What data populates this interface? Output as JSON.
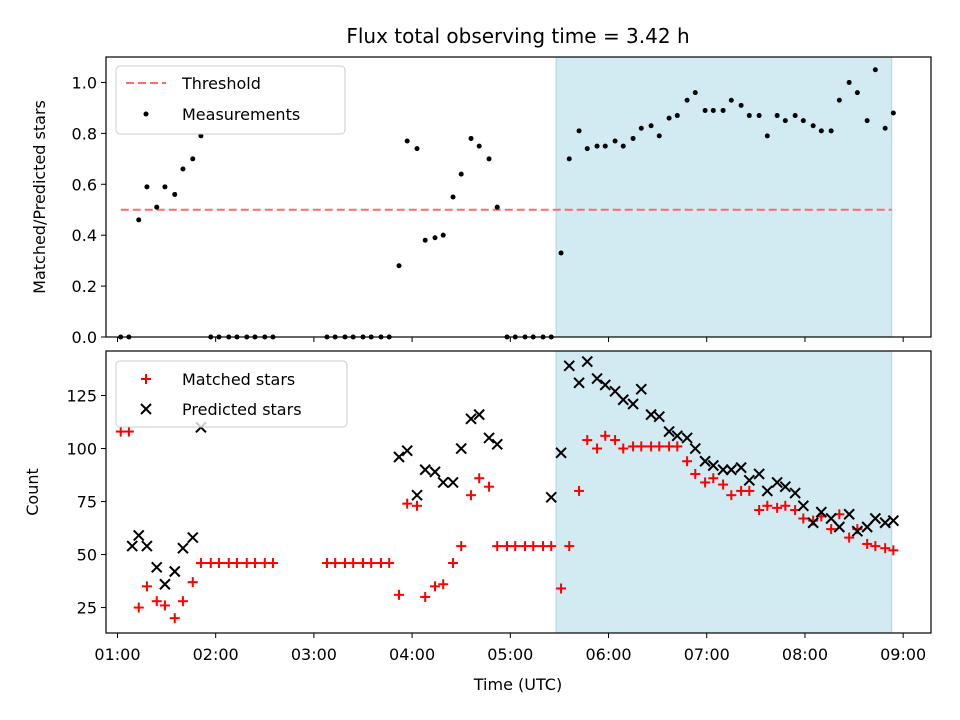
{
  "chart_data": [
    {
      "type": "scatter",
      "title": "Flux total observing time = 3.42 h",
      "ylabel": "Matched/Predicted stars",
      "xlabel": "",
      "xlim": [
        "00:53",
        "09:17"
      ],
      "ylim": [
        0,
        1.1
      ],
      "yticks": [
        "0.0",
        "0.2",
        "0.4",
        "0.6",
        "0.8",
        "1.0"
      ],
      "yticks_values": [
        0,
        0.2,
        0.4,
        0.6,
        0.8,
        1.0
      ],
      "legend_position": "upper left",
      "legend": [
        "Threshold",
        "Measurements"
      ],
      "shaded_region": {
        "start": "05:28",
        "end": "08:53",
        "color": "#add8e6"
      },
      "threshold": {
        "name": "Threshold",
        "value": 0.5,
        "start": "01:02",
        "end": "08:53",
        "color": "#ff6b6b",
        "style": "dashed"
      },
      "series": [
        {
          "name": "Measurements",
          "marker": "dot",
          "color": "#000000",
          "x": [
            "01:02",
            "01:07",
            "01:13",
            "01:18",
            "01:24",
            "01:29",
            "01:35",
            "01:40",
            "01:46",
            "01:51",
            "01:57",
            "02:02",
            "02:08",
            "02:13",
            "02:19",
            "02:24",
            "02:30",
            "02:35",
            "03:08",
            "03:13",
            "03:19",
            "03:24",
            "03:30",
            "03:35",
            "03:41",
            "03:46",
            "03:52",
            "03:57",
            "04:03",
            "04:08",
            "04:14",
            "04:19",
            "04:25",
            "04:30",
            "04:36",
            "04:41",
            "04:47",
            "04:52",
            "04:58",
            "05:03",
            "05:09",
            "05:14",
            "05:20",
            "05:25",
            "05:31",
            "05:36",
            "05:42",
            "05:47",
            "05:53",
            "05:58",
            "06:04",
            "06:09",
            "06:15",
            "06:20",
            "06:26",
            "06:31",
            "06:37",
            "06:42",
            "06:48",
            "06:53",
            "06:59",
            "07:04",
            "07:10",
            "07:15",
            "07:21",
            "07:26",
            "07:32",
            "07:37",
            "07:43",
            "07:48",
            "07:54",
            "07:59",
            "08:05",
            "08:10",
            "08:16",
            "08:21",
            "08:27",
            "08:32",
            "08:38",
            "08:43",
            "08:49",
            "08:54"
          ],
          "y": [
            0,
            0,
            0.46,
            0.59,
            0.51,
            0.59,
            0.56,
            0.66,
            0.7,
            0.79,
            0,
            0,
            0,
            0,
            0,
            0,
            0,
            0,
            0,
            0,
            0,
            0,
            0,
            0,
            0,
            0,
            0.28,
            0.77,
            0.74,
            0.38,
            0.39,
            0.4,
            0.55,
            0.64,
            0.78,
            0.75,
            0.7,
            0.51,
            0,
            0,
            0,
            0,
            0,
            0,
            0.33,
            0.7,
            0.81,
            0.74,
            0.75,
            0.75,
            0.77,
            0.75,
            0.78,
            0.82,
            0.83,
            0.79,
            0.86,
            0.87,
            0.93,
            0.96,
            0.89,
            0.89,
            0.89,
            0.93,
            0.91,
            0.87,
            0.87,
            0.79,
            0.87,
            0.85,
            0.87,
            0.85,
            0.83,
            0.81,
            0.81,
            0.93,
            1.0,
            0.96,
            0.85,
            1.05,
            0.82,
            0.88
          ]
        }
      ]
    },
    {
      "type": "scatter",
      "title": "",
      "ylabel": "Count",
      "xlabel": "Time (UTC)",
      "xlim": [
        "00:53",
        "09:17"
      ],
      "ylim": [
        13,
        146
      ],
      "xticks": [
        "01:00",
        "02:00",
        "03:00",
        "04:00",
        "05:00",
        "06:00",
        "07:00",
        "08:00",
        "09:00"
      ],
      "yticks": [
        "25",
        "50",
        "75",
        "100",
        "125"
      ],
      "yticks_values": [
        25,
        50,
        75,
        100,
        125
      ],
      "legend_position": "upper left",
      "legend": [
        "Matched stars",
        "Predicted stars"
      ],
      "shaded_region": {
        "start": "05:28",
        "end": "08:53",
        "color": "#add8e6"
      },
      "series": [
        {
          "name": "Matched stars",
          "marker": "plus",
          "color": "#ff0000",
          "x": [
            "01:02",
            "01:07",
            "01:13",
            "01:18",
            "01:24",
            "01:29",
            "01:35",
            "01:40",
            "01:46",
            "01:51",
            "01:57",
            "02:02",
            "02:08",
            "02:13",
            "02:19",
            "02:24",
            "02:30",
            "02:35",
            "03:08",
            "03:13",
            "03:19",
            "03:24",
            "03:30",
            "03:35",
            "03:41",
            "03:46",
            "03:52",
            "03:57",
            "04:03",
            "04:08",
            "04:14",
            "04:19",
            "04:25",
            "04:30",
            "04:36",
            "04:41",
            "04:47",
            "04:52",
            "04:58",
            "05:03",
            "05:09",
            "05:14",
            "05:20",
            "05:25",
            "05:31",
            "05:36",
            "05:42",
            "05:47",
            "05:53",
            "05:58",
            "06:04",
            "06:09",
            "06:15",
            "06:20",
            "06:26",
            "06:31",
            "06:37",
            "06:42",
            "06:48",
            "06:53",
            "06:59",
            "07:04",
            "07:10",
            "07:15",
            "07:21",
            "07:26",
            "07:32",
            "07:37",
            "07:43",
            "07:48",
            "07:54",
            "07:59",
            "08:05",
            "08:10",
            "08:16",
            "08:21",
            "08:27",
            "08:32",
            "08:38",
            "08:43",
            "08:49",
            "08:54"
          ],
          "y": [
            108,
            108,
            25,
            35,
            28,
            26,
            20,
            28,
            37,
            46,
            46,
            46,
            46,
            46,
            46,
            46,
            46,
            46,
            46,
            46,
            46,
            46,
            46,
            46,
            46,
            46,
            31,
            74,
            73,
            30,
            35,
            36,
            46,
            54,
            78,
            86,
            82,
            54,
            54,
            54,
            54,
            54,
            54,
            54,
            34,
            54,
            80,
            104,
            100,
            106,
            104,
            100,
            101,
            101,
            101,
            101,
            101,
            101,
            94,
            88,
            84,
            86,
            83,
            78,
            80,
            80,
            71,
            73,
            72,
            73,
            71,
            67,
            66,
            68,
            62,
            69,
            58,
            62,
            55,
            54,
            53,
            52
          ]
        },
        {
          "name": "Predicted stars",
          "marker": "x",
          "color": "#000000",
          "x": [
            "01:09",
            "01:13",
            "01:18",
            "01:24",
            "01:29",
            "01:35",
            "01:40",
            "01:46",
            "01:51",
            "03:52",
            "03:57",
            "04:03",
            "04:08",
            "04:14",
            "04:19",
            "04:25",
            "04:30",
            "04:36",
            "04:41",
            "04:47",
            "04:52",
            "05:25",
            "05:31",
            "05:36",
            "05:42",
            "05:47",
            "05:53",
            "05:58",
            "06:04",
            "06:09",
            "06:15",
            "06:20",
            "06:26",
            "06:31",
            "06:37",
            "06:42",
            "06:48",
            "06:53",
            "06:59",
            "07:04",
            "07:10",
            "07:15",
            "07:21",
            "07:26",
            "07:32",
            "07:37",
            "07:43",
            "07:48",
            "07:54",
            "07:59",
            "08:05",
            "08:10",
            "08:16",
            "08:21",
            "08:27",
            "08:32",
            "08:38",
            "08:43",
            "08:49",
            "08:54"
          ],
          "y": [
            54,
            59,
            54,
            44,
            36,
            42,
            53,
            58,
            110,
            96,
            99,
            78,
            90,
            89,
            84,
            84,
            100,
            114,
            116,
            105,
            102,
            77,
            98,
            139,
            131,
            141,
            133,
            130,
            127,
            123,
            121,
            128,
            116,
            115,
            108,
            106,
            105,
            100,
            94,
            92,
            90,
            90,
            91,
            85,
            88,
            80,
            84,
            82,
            79,
            73,
            65,
            70,
            67,
            63,
            69,
            61,
            63,
            67,
            65,
            66
          ]
        }
      ]
    }
  ]
}
